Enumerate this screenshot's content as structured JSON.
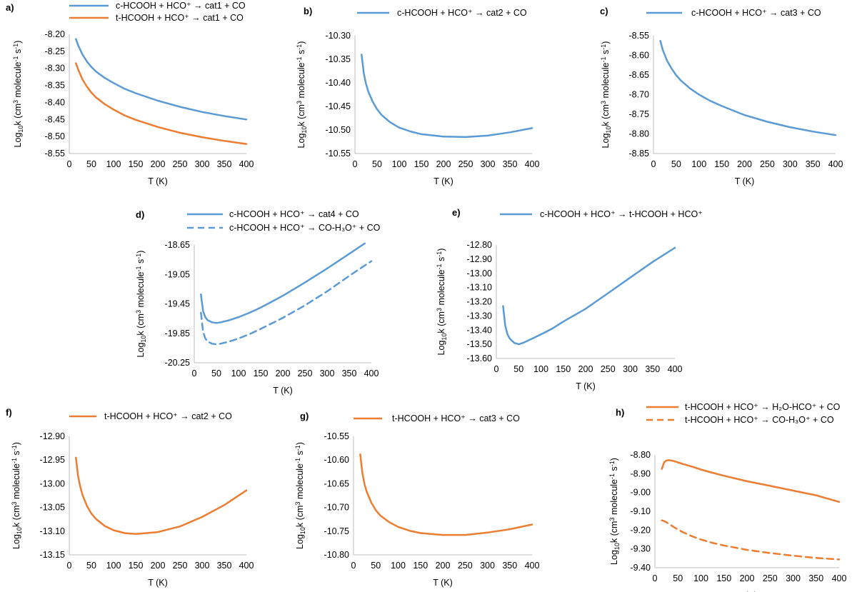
{
  "figure": {
    "colors": {
      "blue": "#5b9bd5",
      "orange": "#ed7d31",
      "axis": "#bfbfbf"
    },
    "ylabel_parts": {
      "base": "Log",
      "sub": "10",
      "mid": "k (cm",
      "sup3": "3",
      "mol": " molecule",
      "supm1": "-1",
      "s": " s",
      "sups": "-1",
      "close": ")"
    },
    "xlabel": "T (K)"
  },
  "chart_data": [
    {
      "panel": "a)",
      "type": "line",
      "title": "",
      "xlabel": "T (K)",
      "ylabel": "Log10k (cm3 molecule-1 s-1)",
      "xlim": [
        0,
        400
      ],
      "ylim": [
        -8.55,
        -8.2
      ],
      "xticks": [
        "0",
        "50",
        "100",
        "150",
        "200",
        "250",
        "300",
        "350",
        "400"
      ],
      "yticks": [
        "-8.20",
        "-8.25",
        "-8.30",
        "-8.35",
        "-8.40",
        "-8.45",
        "-8.50",
        "-8.55"
      ],
      "series": [
        {
          "name": "c-HCOOH + HCO⁺ → cat1 + CO",
          "color": "blue",
          "dash": false,
          "x": [
            15,
            20,
            30,
            40,
            50,
            60,
            80,
            100,
            125,
            150,
            200,
            250,
            300,
            350,
            400
          ],
          "y": [
            -8.214,
            -8.232,
            -8.26,
            -8.28,
            -8.296,
            -8.309,
            -8.328,
            -8.343,
            -8.36,
            -8.373,
            -8.395,
            -8.413,
            -8.428,
            -8.44,
            -8.45
          ]
        },
        {
          "name": "t-HCOOH + HCO⁺ → cat1 + CO",
          "color": "orange",
          "dash": false,
          "x": [
            15,
            20,
            30,
            40,
            50,
            60,
            80,
            100,
            125,
            150,
            200,
            250,
            300,
            350,
            400
          ],
          "y": [
            -8.285,
            -8.303,
            -8.333,
            -8.354,
            -8.371,
            -8.385,
            -8.405,
            -8.421,
            -8.438,
            -8.451,
            -8.472,
            -8.489,
            -8.502,
            -8.513,
            -8.522
          ]
        }
      ]
    },
    {
      "panel": "b)",
      "type": "line",
      "title": "",
      "xlabel": "T (K)",
      "ylabel": "Log10k (cm3 molecule-1 s-1)",
      "xlim": [
        0,
        400
      ],
      "ylim": [
        -10.55,
        -10.3
      ],
      "xticks": [
        "0",
        "50",
        "100",
        "150",
        "200",
        "250",
        "300",
        "350",
        "400"
      ],
      "yticks": [
        "-10.30",
        "-10.35",
        "-10.40",
        "-10.45",
        "-10.50",
        "-10.55"
      ],
      "series": [
        {
          "name": "c-HCOOH + HCO⁺ → cat2 + CO",
          "color": "blue",
          "dash": false,
          "x": [
            15,
            20,
            25,
            30,
            40,
            50,
            60,
            80,
            100,
            125,
            150,
            200,
            250,
            300,
            350,
            400
          ],
          "y": [
            -10.34,
            -10.38,
            -10.402,
            -10.418,
            -10.44,
            -10.456,
            -10.468,
            -10.484,
            -10.495,
            -10.503,
            -10.509,
            -10.514,
            -10.515,
            -10.512,
            -10.505,
            -10.496
          ]
        }
      ]
    },
    {
      "panel": "c)",
      "type": "line",
      "title": "",
      "xlabel": "T (K)",
      "ylabel": "Log10k (cm3 molecule-1 s-1)",
      "xlim": [
        0,
        400
      ],
      "ylim": [
        -8.85,
        -8.55
      ],
      "xticks": [
        "0",
        "50",
        "100",
        "150",
        "200",
        "250",
        "300",
        "350",
        "400"
      ],
      "yticks": [
        "-8.55",
        "-8.60",
        "-8.65",
        "-8.70",
        "-8.75",
        "-8.80",
        "-8.85"
      ],
      "series": [
        {
          "name": "c-HCOOH + HCO⁺ → cat3 + CO",
          "color": "blue",
          "dash": false,
          "x": [
            15,
            20,
            30,
            40,
            50,
            60,
            80,
            100,
            125,
            150,
            200,
            250,
            300,
            350,
            400
          ],
          "y": [
            -8.563,
            -8.585,
            -8.614,
            -8.634,
            -8.651,
            -8.664,
            -8.684,
            -8.7,
            -8.716,
            -8.729,
            -8.752,
            -8.769,
            -8.783,
            -8.794,
            -8.803
          ]
        }
      ]
    },
    {
      "panel": "d)",
      "type": "line",
      "title": "",
      "xlabel": "T (K)",
      "ylabel": "Log10k (cm3 molecule-1 s-1)",
      "xlim": [
        0,
        400
      ],
      "ylim": [
        -20.25,
        -18.65
      ],
      "xticks": [
        "0",
        "50",
        "100",
        "150",
        "200",
        "250",
        "300",
        "350",
        "400"
      ],
      "yticks": [
        "-18.65",
        "-19.05",
        "-19.45",
        "-19.85",
        "-20.25"
      ],
      "series": [
        {
          "name": "c-HCOOH + HCO⁺ → cat4 + CO",
          "color": "blue",
          "dash": false,
          "x": [
            15,
            20,
            25,
            30,
            40,
            50,
            60,
            80,
            100,
            125,
            150,
            200,
            250,
            300,
            350,
            385
          ],
          "y": [
            -19.32,
            -19.55,
            -19.63,
            -19.67,
            -19.7,
            -19.71,
            -19.7,
            -19.67,
            -19.63,
            -19.57,
            -19.5,
            -19.34,
            -19.16,
            -18.97,
            -18.77,
            -18.63
          ]
        },
        {
          "name": "c-HCOOH + HCO⁺ → CO-H₃O⁺ + CO",
          "color": "blue",
          "dash": true,
          "x": [
            15,
            20,
            25,
            30,
            40,
            50,
            60,
            80,
            100,
            125,
            150,
            200,
            250,
            300,
            350,
            400
          ],
          "y": [
            -19.57,
            -19.83,
            -19.92,
            -19.96,
            -19.99,
            -20.0,
            -19.99,
            -19.96,
            -19.92,
            -19.86,
            -19.79,
            -19.64,
            -19.47,
            -19.28,
            -19.07,
            -18.87
          ]
        }
      ]
    },
    {
      "panel": "e)",
      "type": "line",
      "title": "",
      "xlabel": "T (K)",
      "ylabel": "Log10k (cm3 molecule-1 s-1)",
      "xlim": [
        0,
        400
      ],
      "ylim": [
        -13.6,
        -12.8
      ],
      "xticks": [
        "0",
        "50",
        "100",
        "150",
        "200",
        "250",
        "300",
        "350",
        "400"
      ],
      "yticks": [
        "-12.80",
        "-12.90",
        "-13.00",
        "-13.10",
        "-13.20",
        "-13.30",
        "-13.40",
        "-13.50",
        "-13.60"
      ],
      "series": [
        {
          "name": "c-HCOOH + HCO⁺ → t-HCOOH + HCO⁺",
          "color": "blue",
          "dash": false,
          "x": [
            15,
            20,
            25,
            30,
            40,
            50,
            60,
            80,
            100,
            125,
            150,
            200,
            250,
            300,
            350,
            400
          ],
          "y": [
            -13.23,
            -13.37,
            -13.43,
            -13.46,
            -13.49,
            -13.5,
            -13.49,
            -13.46,
            -13.43,
            -13.39,
            -13.34,
            -13.25,
            -13.14,
            -13.03,
            -12.92,
            -12.82
          ]
        }
      ]
    },
    {
      "panel": "f)",
      "type": "line",
      "title": "",
      "xlabel": "T (K)",
      "ylabel": "Log10k (cm3 molecule-1 s-1)",
      "xlim": [
        0,
        400
      ],
      "ylim": [
        -13.15,
        -12.9
      ],
      "xticks": [
        "0",
        "50",
        "100",
        "150",
        "200",
        "250",
        "300",
        "350",
        "400"
      ],
      "yticks": [
        "-12.90",
        "-12.95",
        "-13.00",
        "-13.05",
        "-13.10",
        "-13.15"
      ],
      "series": [
        {
          "name": "t-HCOOH + HCO⁺ → cat2 + CO",
          "color": "orange",
          "dash": false,
          "x": [
            15,
            20,
            25,
            30,
            40,
            50,
            60,
            80,
            100,
            125,
            150,
            200,
            250,
            300,
            350,
            400
          ],
          "y": [
            -12.945,
            -12.985,
            -13.007,
            -13.024,
            -13.047,
            -13.063,
            -13.074,
            -13.089,
            -13.098,
            -13.104,
            -13.106,
            -13.102,
            -13.09,
            -13.07,
            -13.045,
            -13.014
          ]
        }
      ]
    },
    {
      "panel": "g)",
      "type": "line",
      "title": "",
      "xlabel": "T (K)",
      "ylabel": "Log10k (cm3 molecule-1 s-1)",
      "xlim": [
        0,
        400
      ],
      "ylim": [
        -10.8,
        -10.55
      ],
      "xticks": [
        "0",
        "50",
        "100",
        "150",
        "200",
        "250",
        "300",
        "350",
        "400"
      ],
      "yticks": [
        "-10.55",
        "-10.60",
        "-10.65",
        "-10.70",
        "-10.75",
        "-10.80"
      ],
      "series": [
        {
          "name": "t-HCOOH + HCO⁺ → cat3 + CO",
          "color": "orange",
          "dash": false,
          "x": [
            15,
            20,
            25,
            30,
            40,
            50,
            60,
            80,
            100,
            125,
            150,
            200,
            250,
            300,
            350,
            400
          ],
          "y": [
            -10.588,
            -10.628,
            -10.652,
            -10.668,
            -10.69,
            -10.706,
            -10.717,
            -10.731,
            -10.741,
            -10.749,
            -10.754,
            -10.758,
            -10.758,
            -10.753,
            -10.746,
            -10.736
          ]
        }
      ]
    },
    {
      "panel": "h)",
      "type": "line",
      "title": "",
      "xlabel": "T (K)",
      "ylabel": "Log10k (cm3 molecule-1 s-1)",
      "xlim": [
        0,
        400
      ],
      "ylim": [
        -9.4,
        -8.8
      ],
      "xticks": [
        "0",
        "50",
        "100",
        "150",
        "200",
        "250",
        "300",
        "350",
        "400"
      ],
      "yticks": [
        "-8.80",
        "-8.90",
        "-9.00",
        "-9.10",
        "-9.20",
        "-9.30",
        "-9.40"
      ],
      "series": [
        {
          "name": "t-HCOOH + HCO⁺ → H₂O-HCO⁺ + CO",
          "color": "orange",
          "dash": false,
          "x": [
            15,
            20,
            25,
            30,
            40,
            50,
            60,
            80,
            100,
            125,
            150,
            200,
            250,
            300,
            350,
            400
          ],
          "y": [
            -8.875,
            -8.84,
            -8.83,
            -8.828,
            -8.832,
            -8.84,
            -8.848,
            -8.862,
            -8.878,
            -8.895,
            -8.911,
            -8.94,
            -8.965,
            -8.99,
            -9.015,
            -9.05
          ]
        },
        {
          "name": "t-HCOOH + HCO⁺ → CO-H₃O⁺ + CO",
          "color": "orange",
          "dash": true,
          "x": [
            15,
            20,
            25,
            30,
            40,
            50,
            60,
            80,
            100,
            125,
            150,
            200,
            250,
            300,
            350,
            400
          ],
          "y": [
            -9.148,
            -9.152,
            -9.158,
            -9.166,
            -9.182,
            -9.197,
            -9.21,
            -9.232,
            -9.25,
            -9.268,
            -9.282,
            -9.305,
            -9.322,
            -9.336,
            -9.348,
            -9.356
          ]
        }
      ]
    }
  ]
}
